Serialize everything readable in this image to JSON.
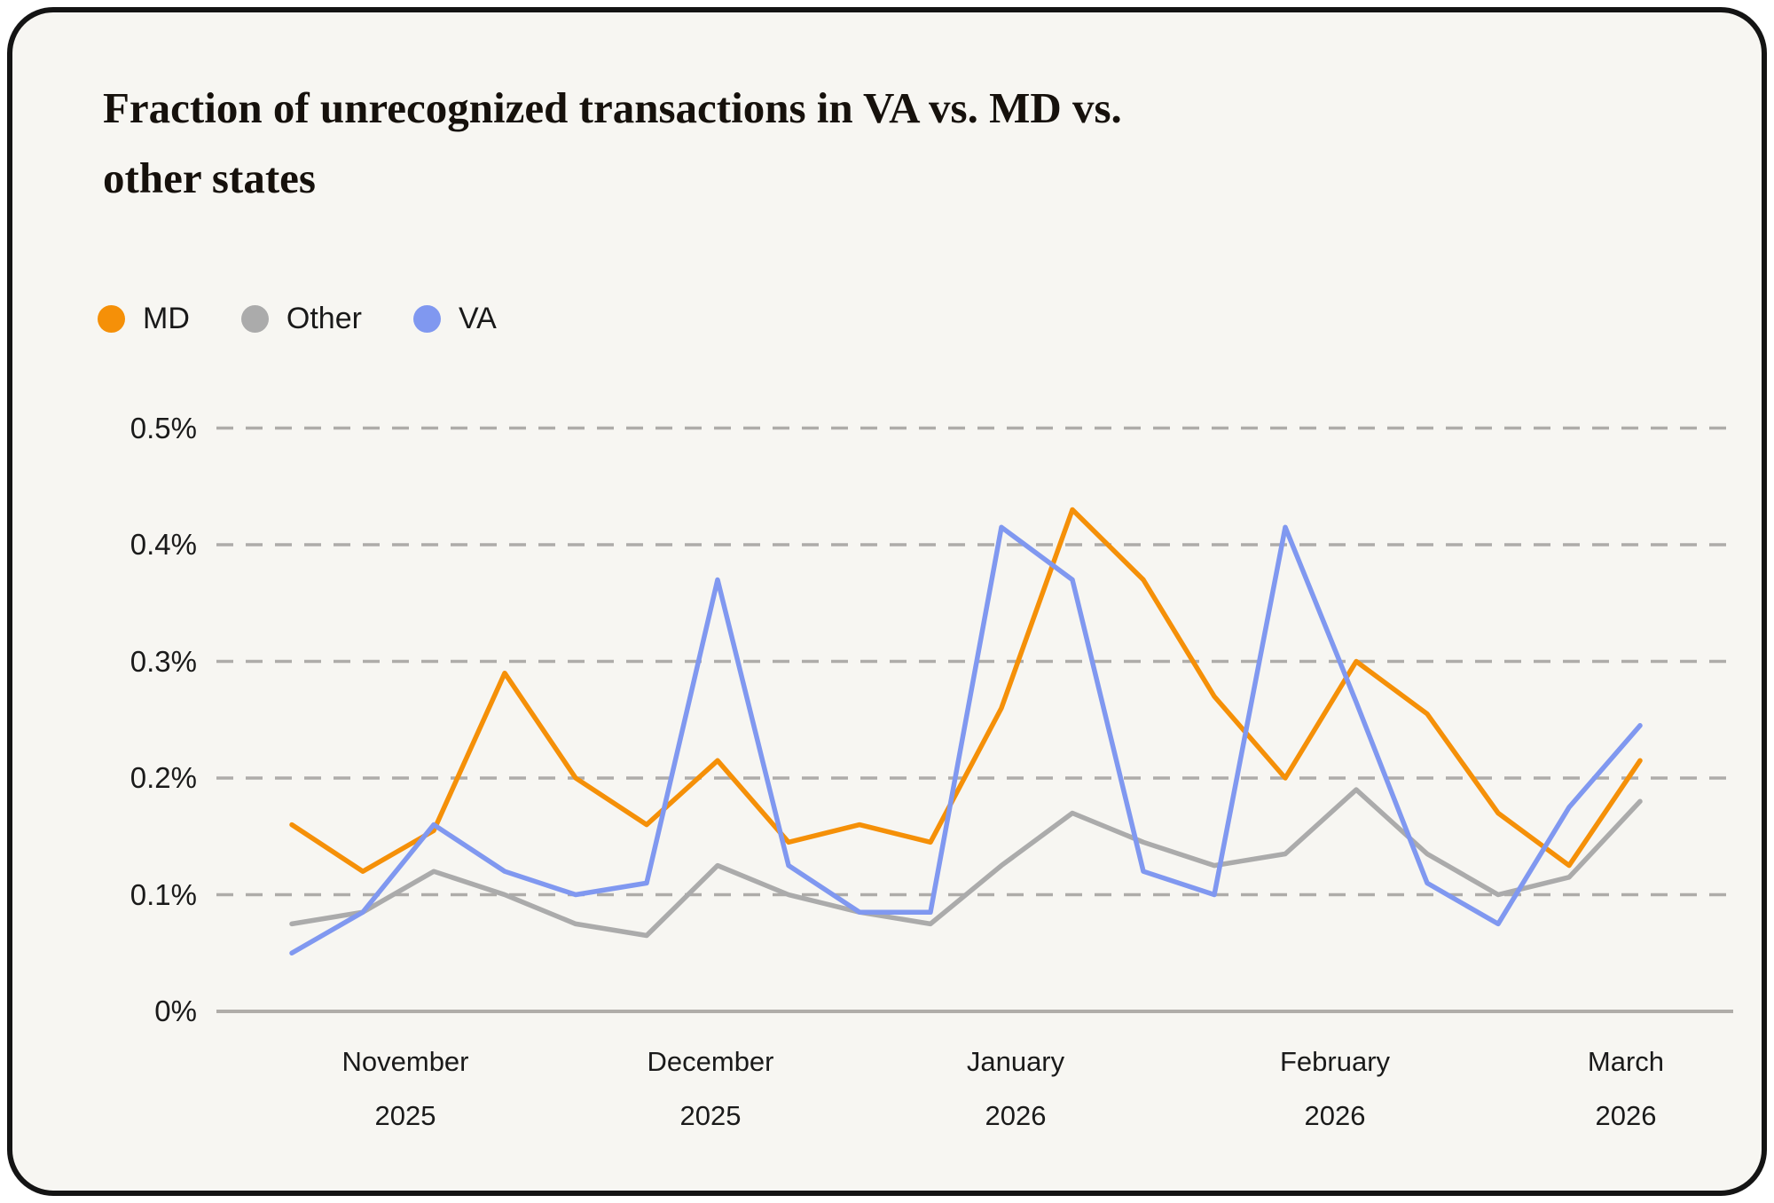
{
  "title": {
    "line1": "Fraction of unrecognized transactions in VA vs. MD vs.",
    "line2": "other states",
    "full": "Fraction of unrecognized transactions in VA vs. MD vs. other states"
  },
  "colors": {
    "background": "#F7F6F2",
    "card_border": "#141414",
    "grid": "#9c9a97",
    "axis": "#b0ada9",
    "text": "#1a1a1a",
    "md": "#F59008",
    "other": "#ABABAB",
    "va": "#8098F0"
  },
  "chart_data": {
    "type": "line",
    "title": "Fraction of unrecognized transactions in VA vs. MD vs. other states",
    "ylabel": "",
    "xlabel": "",
    "ylim": [
      0,
      0.5
    ],
    "y_unit": "percent",
    "grid": "horizontal-dashed",
    "legend_position": "top-left",
    "yticks": [
      {
        "label": "0.5%",
        "value": 0.5
      },
      {
        "label": "0.4%",
        "value": 0.4
      },
      {
        "label": "0.3%",
        "value": 0.3
      },
      {
        "label": "0.2%",
        "value": 0.2
      },
      {
        "label": "0.1%",
        "value": 0.1
      },
      {
        "label": "0%",
        "value": 0
      }
    ],
    "x_unit": "week",
    "n_points": 20,
    "months": [
      {
        "label": "November",
        "year": "2025",
        "week_center": 1.6
      },
      {
        "label": "December",
        "year": "2025",
        "week_center": 5.9
      },
      {
        "label": "January",
        "year": "2026",
        "week_center": 10.2
      },
      {
        "label": "February",
        "year": "2026",
        "week_center": 14.7
      },
      {
        "label": "March",
        "year": "2026",
        "week_center": 18.8
      }
    ],
    "series": [
      {
        "name": "MD",
        "color": "#F59008",
        "values": [
          0.16,
          0.12,
          0.155,
          0.29,
          0.2,
          0.16,
          0.215,
          0.145,
          0.16,
          0.145,
          0.26,
          0.43,
          0.37,
          0.27,
          0.2,
          0.3,
          0.255,
          0.17,
          0.125,
          0.215
        ]
      },
      {
        "name": "Other",
        "color": "#ABABAB",
        "values": [
          0.075,
          0.085,
          0.12,
          0.1,
          0.075,
          0.065,
          0.125,
          0.1,
          0.085,
          0.075,
          0.125,
          0.17,
          0.145,
          0.125,
          0.135,
          0.19,
          0.135,
          0.1,
          0.115,
          0.18
        ]
      },
      {
        "name": "VA",
        "color": "#8098F0",
        "values": [
          0.05,
          0.085,
          0.16,
          0.12,
          0.1,
          0.11,
          0.37,
          0.125,
          0.085,
          0.085,
          0.415,
          0.37,
          0.12,
          0.1,
          0.415,
          0.265,
          0.11,
          0.075,
          0.175,
          0.245
        ]
      }
    ]
  }
}
